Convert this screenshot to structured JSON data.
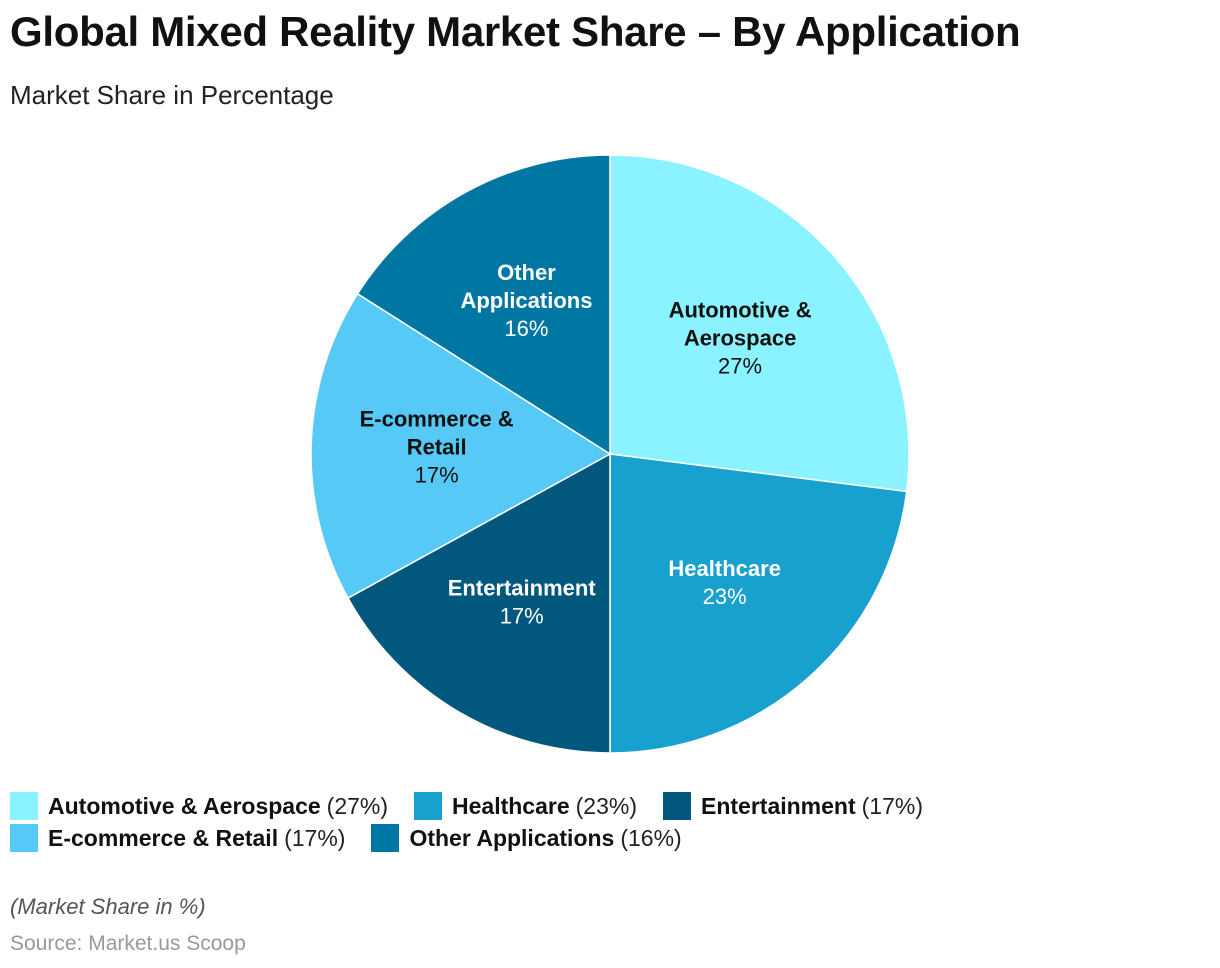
{
  "header": {
    "title": "Global Mixed Reality Market Share – By Application",
    "subtitle": "Market Share in Percentage"
  },
  "chart_data": {
    "type": "pie",
    "title": "Global Mixed Reality Market Share – By Application",
    "subtitle": "Market Share in Percentage",
    "unit": "%",
    "slices": [
      {
        "label_lines": [
          "Automotive &",
          "Aerospace"
        ],
        "name": "Automotive & Aerospace",
        "value": 27,
        "value_label": "27%",
        "legend_value": "(27%)",
        "color": "#8AF3FF",
        "text_color": "#111111"
      },
      {
        "label_lines": [
          "Healthcare"
        ],
        "name": "Healthcare",
        "value": 23,
        "value_label": "23%",
        "legend_value": "(23%)",
        "color": "#18A0CE",
        "text_color": "#ffffff"
      },
      {
        "label_lines": [
          "Entertainment"
        ],
        "name": "Entertainment",
        "value": 17,
        "value_label": "17%",
        "legend_value": "(17%)",
        "color": "#02577D",
        "text_color": "#ffffff"
      },
      {
        "label_lines": [
          "E-commerce &",
          "Retail"
        ],
        "name": "E-commerce & Retail",
        "value": 17,
        "value_label": "17%",
        "legend_value": "(17%)",
        "color": "#56C9F6",
        "text_color": "#111111"
      },
      {
        "label_lines": [
          "Other",
          "Applications"
        ],
        "name": "Other Applications",
        "value": 16,
        "value_label": "16%",
        "legend_value": "(16%)",
        "color": "#0077A3",
        "text_color": "#ffffff"
      }
    ],
    "start_angle": "top",
    "direction": "clockwise",
    "legend_position": "bottom-left"
  },
  "footer": {
    "note": "(Market Share in %)",
    "source": "Source: Market.us Scoop"
  }
}
